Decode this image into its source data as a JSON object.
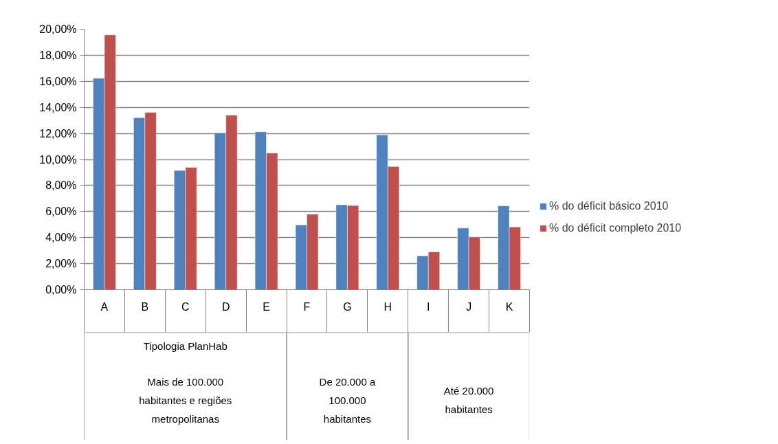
{
  "chart_data": {
    "type": "bar",
    "categories": [
      "A",
      "B",
      "C",
      "D",
      "E",
      "F",
      "G",
      "H",
      "I",
      "J",
      "K"
    ],
    "series": [
      {
        "name": "% do déficit básico 2010",
        "color": "#4f81bd",
        "values": [
          16.23,
          13.21,
          9.16,
          12.04,
          12.12,
          4.98,
          6.52,
          11.89,
          2.6,
          4.73,
          6.44
        ]
      },
      {
        "name": "% do déficit completo 2010",
        "color": "#c0504d",
        "values": [
          19.56,
          13.62,
          9.39,
          13.4,
          10.49,
          5.8,
          6.47,
          9.46,
          2.9,
          4.05,
          4.82
        ]
      }
    ],
    "ylim": [
      0,
      20
    ],
    "yticks": [
      {
        "value": 0,
        "label": "0,00%"
      },
      {
        "value": 2,
        "label": "2,00%"
      },
      {
        "value": 4,
        "label": "4,00%"
      },
      {
        "value": 6,
        "label": "6,00%"
      },
      {
        "value": 8,
        "label": "8,00%"
      },
      {
        "value": 10,
        "label": "10,00%"
      },
      {
        "value": 12,
        "label": "12,00%"
      },
      {
        "value": 14,
        "label": "14,00%"
      },
      {
        "value": 16,
        "label": "16,00%"
      },
      {
        "value": 18,
        "label": "18,00%"
      },
      {
        "value": 20,
        "label": "20,00%"
      }
    ],
    "grid": "y",
    "legend": "right",
    "annotations": [
      "Tipologia PlanHab",
      "Mais de 100.000 habitantes e regiões metropolitanas",
      "De 20.000 a 100.000 habitantes",
      "Até 20.000 habitantes"
    ]
  }
}
